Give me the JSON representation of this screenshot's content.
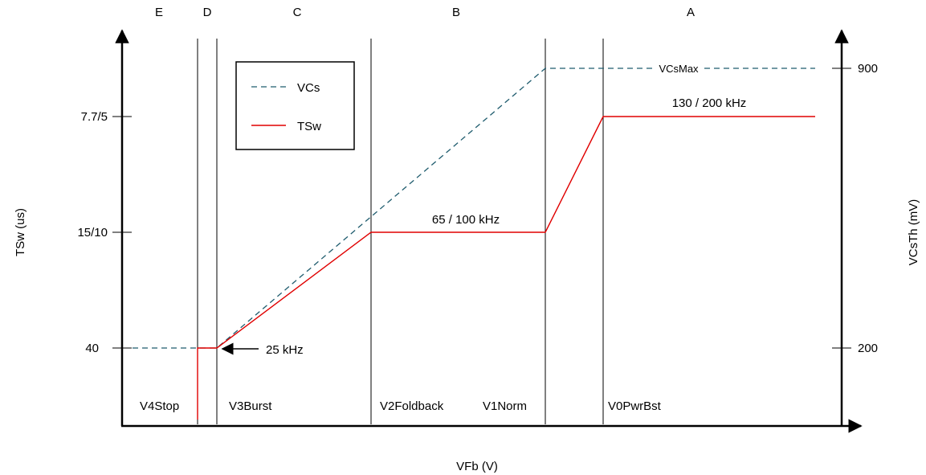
{
  "regions": [
    "E",
    "D",
    "C",
    "B",
    "A"
  ],
  "voltage_labels": [
    "V4Stop",
    "V3Burst",
    "V2Foldback",
    "V1Norm",
    "V0PwrBst"
  ],
  "axes": {
    "x_label": "VFb (V)",
    "y_left_label": "TSw (us)",
    "y_right_label": "VCsTh (mV)"
  },
  "left_ticks": [
    "7.7/5",
    "15/10",
    "40"
  ],
  "right_ticks": [
    "900",
    "200"
  ],
  "legend": {
    "vcs": "VCs",
    "tsw": "TSw"
  },
  "annotations": {
    "vcs_max": "VCsMax",
    "f_high": "130 / 200 kHz",
    "f_mid": "65 / 100 kHz",
    "f_low": "25 kHz"
  },
  "colors": {
    "vcs": "#1f5c6e",
    "tsw": "#e00000"
  }
}
